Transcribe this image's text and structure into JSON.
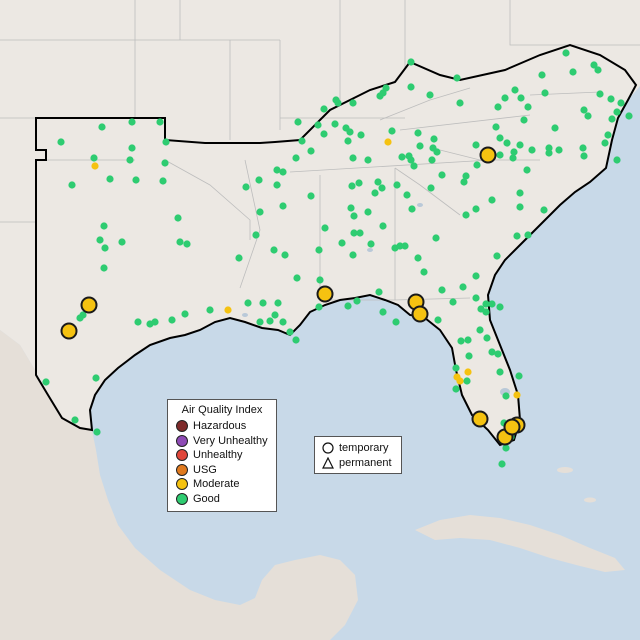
{
  "legend": {
    "title": "Air Quality Index",
    "items": [
      {
        "label": "Hazardous",
        "color": "#7e2a2a"
      },
      {
        "label": "Very Unhealthy",
        "color": "#8e4bb5"
      },
      {
        "label": "Unhealthy",
        "color": "#e0463a"
      },
      {
        "label": "USG",
        "color": "#e07a1f"
      },
      {
        "label": "Moderate",
        "color": "#f5c211"
      },
      {
        "label": "Good",
        "color": "#2ecc71"
      }
    ]
  },
  "site_types": {
    "items": [
      {
        "label": "temporary",
        "icon": "circle-icon"
      },
      {
        "label": "permanent",
        "icon": "triangle-icon"
      }
    ]
  },
  "colors": {
    "water": "#c8d9e8",
    "land": "#ece8e3",
    "state_line": "#bdbdbd",
    "region_outline": "#000000",
    "good": "#2ecc71",
    "moderate": "#f5c211"
  }
}
